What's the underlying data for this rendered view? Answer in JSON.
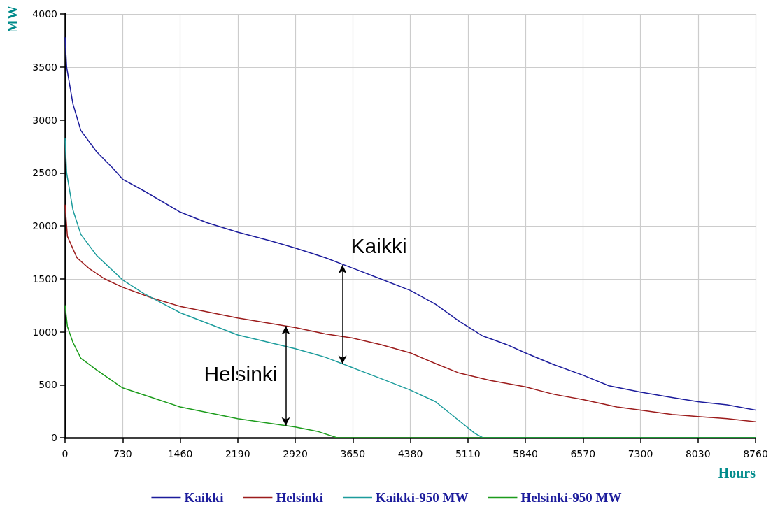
{
  "chart_data": {
    "type": "line",
    "xlabel": "Hours",
    "ylabel": "MW",
    "xlim": [
      0,
      8760
    ],
    "xticks": [
      0,
      730,
      1460,
      2190,
      2920,
      3650,
      4380,
      5110,
      5840,
      6570,
      7300,
      8030,
      8760
    ],
    "ylim": [
      0,
      4000
    ],
    "yticks": [
      0,
      500,
      1000,
      1500,
      2000,
      2500,
      3000,
      3500,
      4000
    ],
    "grid": true,
    "legend": "bottom",
    "series": [
      {
        "name": "Kaikki",
        "color": "#1c1c9c",
        "x": [
          0,
          20,
          100,
          200,
          400,
          600,
          730,
          1000,
          1460,
          1800,
          2190,
          2600,
          2920,
          3300,
          3650,
          4000,
          4380,
          4700,
          5000,
          5300,
          5600,
          5840,
          6200,
          6570,
          6900,
          7300,
          7700,
          8030,
          8400,
          8760
        ],
        "values": [
          3780,
          3500,
          3150,
          2900,
          2700,
          2550,
          2440,
          2330,
          2130,
          2030,
          1940,
          1860,
          1790,
          1700,
          1600,
          1500,
          1390,
          1260,
          1100,
          960,
          880,
          800,
          690,
          590,
          490,
          430,
          380,
          340,
          310,
          260
        ]
      },
      {
        "name": "Helsinki",
        "color": "#9c1c1c",
        "x": [
          0,
          30,
          150,
          300,
          500,
          730,
          1100,
          1460,
          2190,
          2920,
          3300,
          3650,
          4000,
          4380,
          4700,
          5000,
          5400,
          5840,
          6200,
          6570,
          7000,
          7300,
          7700,
          8030,
          8400,
          8760
        ],
        "values": [
          2200,
          1900,
          1700,
          1600,
          1500,
          1420,
          1320,
          1240,
          1130,
          1040,
          980,
          940,
          880,
          800,
          700,
          610,
          540,
          480,
          410,
          360,
          290,
          260,
          220,
          200,
          180,
          150
        ]
      },
      {
        "name": "Kaikki-950 MW",
        "color": "#1c9c9c",
        "x": [
          0,
          20,
          100,
          200,
          400,
          730,
          1000,
          1460,
          2190,
          2920,
          3300,
          3650,
          4000,
          4380,
          4700,
          5000,
          5200,
          5300,
          8760
        ],
        "values": [
          2830,
          2500,
          2150,
          1920,
          1720,
          1490,
          1360,
          1180,
          970,
          840,
          760,
          660,
          560,
          450,
          340,
          160,
          40,
          0,
          0
        ]
      },
      {
        "name": "Helsinki-950 MW",
        "color": "#1c9c1c",
        "x": [
          0,
          30,
          100,
          200,
          400,
          730,
          1100,
          1460,
          2190,
          2920,
          3200,
          3450,
          8760
        ],
        "values": [
          1250,
          1050,
          900,
          750,
          640,
          470,
          380,
          290,
          180,
          100,
          60,
          0,
          0
        ]
      }
    ],
    "annotations": [
      {
        "text": "Kaikki",
        "x": 3520,
        "y": 1630
      },
      {
        "text": "Helsinki",
        "x": 2800,
        "y": 1055
      }
    ]
  }
}
